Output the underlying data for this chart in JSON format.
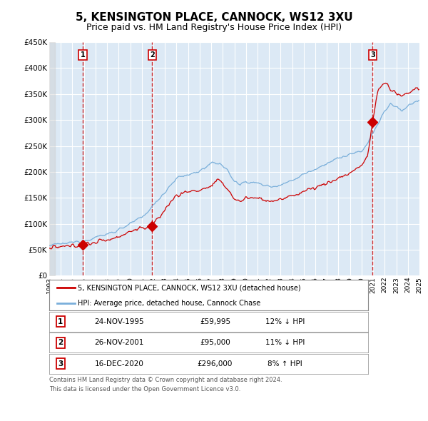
{
  "title": "5, KENSINGTON PLACE, CANNOCK, WS12 3XU",
  "subtitle": "Price paid vs. HM Land Registry's House Price Index (HPI)",
  "title_fontsize": 11,
  "subtitle_fontsize": 9,
  "background_color": "#ffffff",
  "plot_bg_color": "#dce9f5",
  "hatch_bg_color": "#e0e0e0",
  "grid_color": "#ffffff",
  "x_start_year": 1993,
  "x_end_year": 2025,
  "ylim": [
    0,
    450000
  ],
  "yticks": [
    0,
    50000,
    100000,
    150000,
    200000,
    250000,
    300000,
    350000,
    400000,
    450000
  ],
  "ytick_labels": [
    "£0",
    "£50K",
    "£100K",
    "£150K",
    "£200K",
    "£250K",
    "£300K",
    "£350K",
    "£400K",
    "£450K"
  ],
  "property_color": "#cc0000",
  "hpi_color": "#7aafda",
  "sale_points": [
    {
      "year": 1995.9,
      "value": 59995,
      "label": "1"
    },
    {
      "year": 2001.9,
      "value": 95000,
      "label": "2"
    },
    {
      "year": 2020.96,
      "value": 296000,
      "label": "3"
    }
  ],
  "legend_property": "5, KENSINGTON PLACE, CANNOCK, WS12 3XU (detached house)",
  "legend_hpi": "HPI: Average price, detached house, Cannock Chase",
  "table_rows": [
    {
      "num": "1",
      "date": "24-NOV-1995",
      "price": "£59,995",
      "hpi": "12% ↓ HPI"
    },
    {
      "num": "2",
      "date": "26-NOV-2001",
      "price": "£95,000",
      "hpi": "11% ↓ HPI"
    },
    {
      "num": "3",
      "date": "16-DEC-2020",
      "price": "£296,000",
      "hpi": "8% ↑ HPI"
    }
  ],
  "footnote": "Contains HM Land Registry data © Crown copyright and database right 2024.\nThis data is licensed under the Open Government Licence v3.0."
}
